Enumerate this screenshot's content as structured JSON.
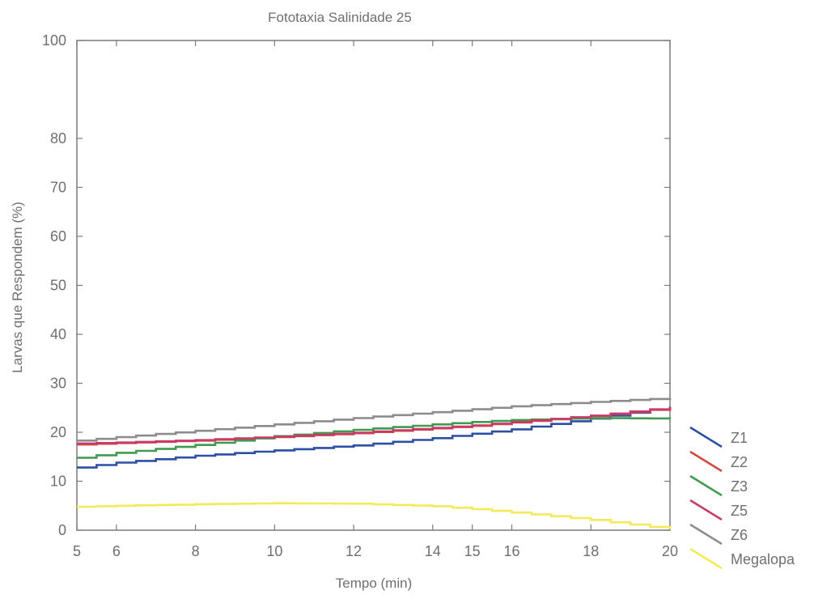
{
  "chart_data": {
    "type": "line",
    "title": "Fototaxia Salinidade 25",
    "xlabel": "Tempo (min)",
    "ylabel": "Larvas que Respondem (%)",
    "xlim": [
      5,
      20
    ],
    "ylim": [
      0,
      100
    ],
    "x_ticks": [
      5,
      6,
      8,
      10,
      12,
      14,
      15,
      16,
      18,
      20
    ],
    "y_ticks": [
      0,
      10,
      20,
      30,
      40,
      50,
      60,
      70,
      80,
      100
    ],
    "grid": false,
    "legend_position": "right-bottom",
    "series": [
      {
        "name": "Z1",
        "color": "#2a4fa3",
        "x": [
          5,
          6,
          8,
          10,
          12,
          14,
          15,
          16,
          18,
          20
        ],
        "y": [
          12.8,
          13.8,
          15.2,
          16.3,
          17.3,
          18.8,
          19.7,
          20.6,
          22.8,
          25.2
        ]
      },
      {
        "name": "Z2",
        "color": "#d2483f",
        "x": [
          5,
          6,
          8,
          10,
          12,
          14,
          15,
          16,
          18,
          20
        ],
        "y": [
          17.5,
          17.8,
          18.3,
          19.0,
          19.8,
          20.8,
          21.3,
          22.0,
          23.3,
          25.0
        ]
      },
      {
        "name": "Z3",
        "color": "#3f9b4f",
        "x": [
          5,
          6,
          8,
          10,
          12,
          14,
          15,
          16,
          18,
          20
        ],
        "y": [
          14.8,
          15.8,
          17.4,
          19.2,
          20.5,
          21.6,
          22.1,
          22.5,
          22.9,
          22.8
        ]
      },
      {
        "name": "Z5",
        "color": "#c83a6a",
        "x": [
          5,
          6,
          8,
          10,
          12,
          14,
          15,
          16,
          18,
          20
        ],
        "y": [
          17.7,
          17.9,
          18.4,
          19.1,
          19.9,
          20.9,
          21.4,
          22.1,
          23.4,
          25.1
        ]
      },
      {
        "name": "Z6",
        "color": "#8c8c8c",
        "x": [
          5,
          6,
          8,
          10,
          12,
          14,
          15,
          16,
          18,
          20
        ],
        "y": [
          18.3,
          19.0,
          20.3,
          21.6,
          22.9,
          24.1,
          24.7,
          25.3,
          26.2,
          27.0
        ]
      },
      {
        "name": "Megalopa",
        "color": "#f2ea58",
        "x": [
          5,
          6,
          8,
          10,
          12,
          14,
          15,
          16,
          18,
          20
        ],
        "y": [
          4.8,
          5.0,
          5.3,
          5.5,
          5.4,
          4.9,
          4.3,
          3.6,
          2.1,
          0.2
        ]
      }
    ]
  }
}
